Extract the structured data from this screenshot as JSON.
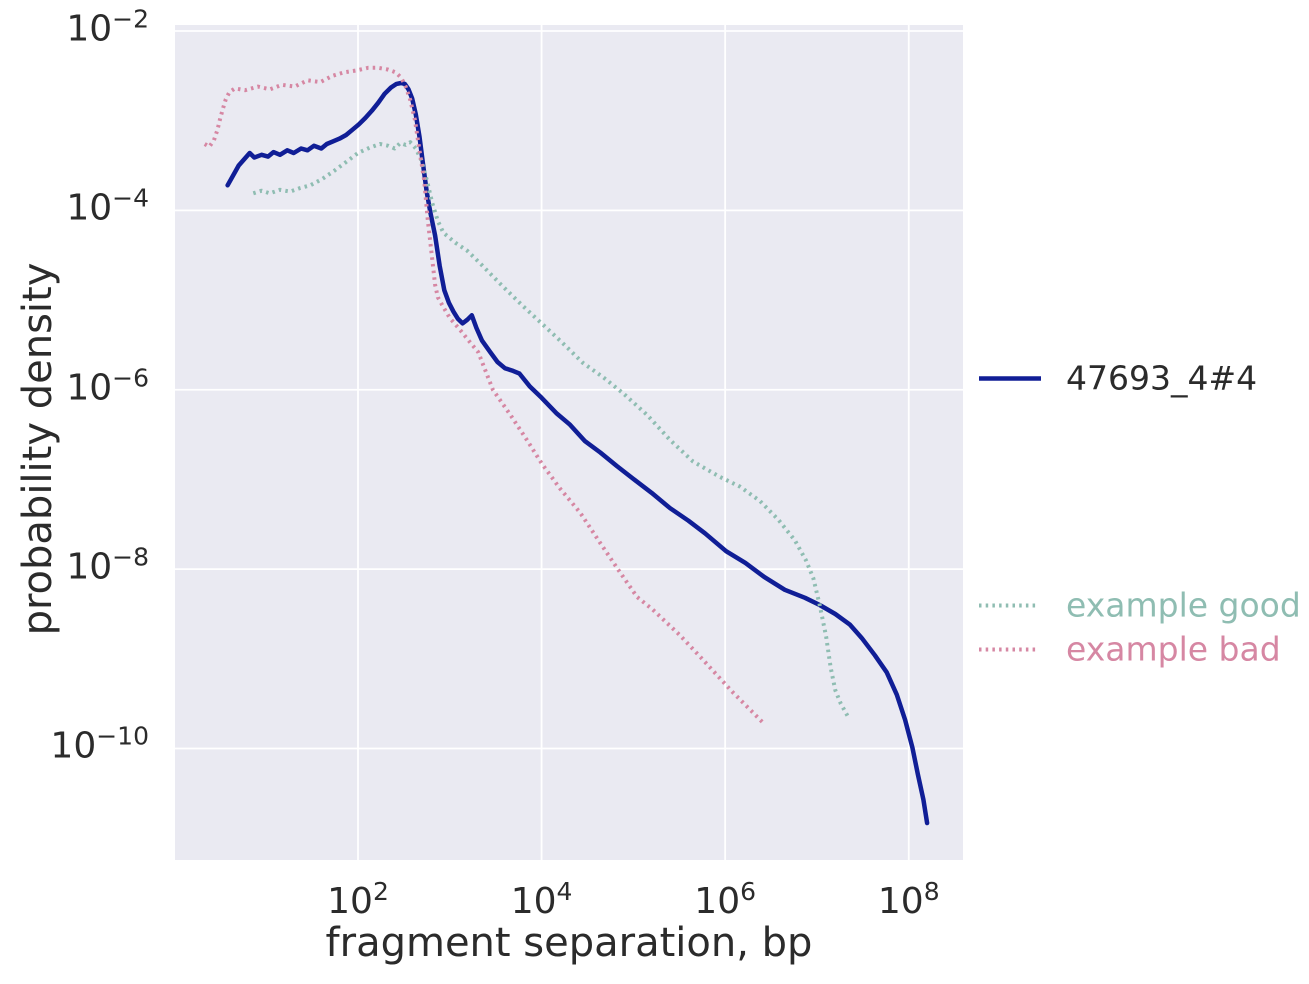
{
  "chart_data": {
    "type": "line",
    "title": "",
    "xlabel": "fragment separation, bp",
    "ylabel": "probability density",
    "x_scale": "log",
    "y_scale": "log",
    "background_color": "#eaeaf2",
    "grid_color": "#ffffff",
    "text_color": "#2b2b2b",
    "axes": {
      "x_log_min": 0.0065,
      "x_log_max": 8.591,
      "y_log_min": -11.243,
      "y_log_max": -1.933
    },
    "x_gridlines_log10": [
      2,
      4,
      6,
      8
    ],
    "y_gridlines_log10": [
      -2,
      -4,
      -6,
      -8,
      -10
    ],
    "x_ticks": [
      {
        "base": "10",
        "exp": "2"
      },
      {
        "base": "10",
        "exp": "4"
      },
      {
        "base": "10",
        "exp": "6"
      },
      {
        "base": "10",
        "exp": "8"
      }
    ],
    "y_ticks": [
      {
        "base": "10",
        "exp": "−2"
      },
      {
        "base": "10",
        "exp": "−4"
      },
      {
        "base": "10",
        "exp": "−6"
      },
      {
        "base": "10",
        "exp": "−8"
      },
      {
        "base": "10",
        "exp": "−10"
      }
    ],
    "series": [
      {
        "name": "47693_4#4",
        "color": "#101e96",
        "style": "solid",
        "width": 4.5,
        "points_log10": [
          [
            0.58,
            -3.72
          ],
          [
            0.7,
            -3.5
          ],
          [
            0.82,
            -3.36
          ],
          [
            0.87,
            -3.41
          ],
          [
            0.95,
            -3.38
          ],
          [
            1.02,
            -3.4
          ],
          [
            1.08,
            -3.35
          ],
          [
            1.15,
            -3.38
          ],
          [
            1.23,
            -3.33
          ],
          [
            1.3,
            -3.36
          ],
          [
            1.38,
            -3.31
          ],
          [
            1.45,
            -3.33
          ],
          [
            1.52,
            -3.28
          ],
          [
            1.6,
            -3.31
          ],
          [
            1.66,
            -3.26
          ],
          [
            1.73,
            -3.23
          ],
          [
            1.8,
            -3.2
          ],
          [
            1.87,
            -3.16
          ],
          [
            1.94,
            -3.1
          ],
          [
            2.01,
            -3.04
          ],
          [
            2.08,
            -2.97
          ],
          [
            2.15,
            -2.89
          ],
          [
            2.22,
            -2.8
          ],
          [
            2.29,
            -2.7
          ],
          [
            2.36,
            -2.63
          ],
          [
            2.42,
            -2.59
          ],
          [
            2.47,
            -2.58
          ],
          [
            2.51,
            -2.59
          ],
          [
            2.55,
            -2.65
          ],
          [
            2.59,
            -2.75
          ],
          [
            2.63,
            -2.93
          ],
          [
            2.67,
            -3.18
          ],
          [
            2.71,
            -3.5
          ],
          [
            2.75,
            -3.8
          ],
          [
            2.79,
            -4.03
          ],
          [
            2.84,
            -4.28
          ],
          [
            2.89,
            -4.62
          ],
          [
            2.94,
            -4.89
          ],
          [
            2.99,
            -5.03
          ],
          [
            3.04,
            -5.13
          ],
          [
            3.09,
            -5.21
          ],
          [
            3.14,
            -5.26
          ],
          [
            3.19,
            -5.22
          ],
          [
            3.24,
            -5.17
          ],
          [
            3.29,
            -5.31
          ],
          [
            3.35,
            -5.45
          ],
          [
            3.44,
            -5.58
          ],
          [
            3.52,
            -5.69
          ],
          [
            3.6,
            -5.76
          ],
          [
            3.69,
            -5.79
          ],
          [
            3.76,
            -5.82
          ],
          [
            3.87,
            -5.96
          ],
          [
            4.0,
            -6.09
          ],
          [
            4.16,
            -6.26
          ],
          [
            4.31,
            -6.39
          ],
          [
            4.47,
            -6.57
          ],
          [
            4.64,
            -6.7
          ],
          [
            4.82,
            -6.85
          ],
          [
            5.02,
            -7.01
          ],
          [
            5.2,
            -7.15
          ],
          [
            5.4,
            -7.32
          ],
          [
            5.6,
            -7.46
          ],
          [
            5.78,
            -7.6
          ],
          [
            6.01,
            -7.8
          ],
          [
            6.22,
            -7.93
          ],
          [
            6.43,
            -8.09
          ],
          [
            6.65,
            -8.23
          ],
          [
            6.87,
            -8.32
          ],
          [
            7.03,
            -8.4
          ],
          [
            7.2,
            -8.5
          ],
          [
            7.36,
            -8.62
          ],
          [
            7.49,
            -8.77
          ],
          [
            7.63,
            -8.96
          ],
          [
            7.76,
            -9.15
          ],
          [
            7.87,
            -9.4
          ],
          [
            7.96,
            -9.68
          ],
          [
            8.04,
            -9.99
          ],
          [
            8.1,
            -10.29
          ],
          [
            8.16,
            -10.57
          ],
          [
            8.2,
            -10.83
          ]
        ]
      },
      {
        "name": "example good",
        "color": "#8fbdb2",
        "style": "dotted",
        "width": 4,
        "points_log10": [
          [
            0.86,
            -3.81
          ],
          [
            0.95,
            -3.78
          ],
          [
            1.04,
            -3.81
          ],
          [
            1.15,
            -3.77
          ],
          [
            1.26,
            -3.79
          ],
          [
            1.37,
            -3.75
          ],
          [
            1.48,
            -3.72
          ],
          [
            1.61,
            -3.65
          ],
          [
            1.74,
            -3.56
          ],
          [
            1.87,
            -3.46
          ],
          [
            2.0,
            -3.36
          ],
          [
            2.13,
            -3.3
          ],
          [
            2.24,
            -3.26
          ],
          [
            2.33,
            -3.28
          ],
          [
            2.4,
            -3.31
          ],
          [
            2.46,
            -3.25
          ],
          [
            2.52,
            -3.27
          ],
          [
            2.57,
            -3.24
          ],
          [
            2.63,
            -3.31
          ],
          [
            2.69,
            -3.44
          ],
          [
            2.75,
            -3.66
          ],
          [
            2.81,
            -3.92
          ],
          [
            2.87,
            -4.12
          ],
          [
            2.93,
            -4.25
          ],
          [
            3.06,
            -4.36
          ],
          [
            3.19,
            -4.45
          ],
          [
            3.33,
            -4.59
          ],
          [
            3.55,
            -4.82
          ],
          [
            3.78,
            -5.05
          ],
          [
            4.0,
            -5.26
          ],
          [
            4.22,
            -5.47
          ],
          [
            4.45,
            -5.7
          ],
          [
            4.67,
            -5.86
          ],
          [
            4.89,
            -6.04
          ],
          [
            5.15,
            -6.28
          ],
          [
            5.4,
            -6.56
          ],
          [
            5.65,
            -6.8
          ],
          [
            5.94,
            -6.97
          ],
          [
            6.16,
            -7.08
          ],
          [
            6.38,
            -7.24
          ],
          [
            6.58,
            -7.45
          ],
          [
            6.76,
            -7.68
          ],
          [
            6.88,
            -7.9
          ],
          [
            6.96,
            -8.1
          ],
          [
            7.03,
            -8.4
          ],
          [
            7.1,
            -8.75
          ],
          [
            7.15,
            -9.1
          ],
          [
            7.2,
            -9.35
          ],
          [
            7.26,
            -9.5
          ],
          [
            7.34,
            -9.65
          ]
        ]
      },
      {
        "name": "example bad",
        "color": "#d687a3",
        "style": "dotted",
        "width": 4,
        "points_log10": [
          [
            0.33,
            -3.26
          ],
          [
            0.38,
            -3.29
          ],
          [
            0.43,
            -3.22
          ],
          [
            0.47,
            -3.1
          ],
          [
            0.5,
            -2.97
          ],
          [
            0.53,
            -2.86
          ],
          [
            0.56,
            -2.76
          ],
          [
            0.6,
            -2.68
          ],
          [
            0.66,
            -2.64
          ],
          [
            0.77,
            -2.66
          ],
          [
            0.91,
            -2.62
          ],
          [
            1.04,
            -2.65
          ],
          [
            1.17,
            -2.6
          ],
          [
            1.31,
            -2.62
          ],
          [
            1.45,
            -2.55
          ],
          [
            1.59,
            -2.57
          ],
          [
            1.72,
            -2.5
          ],
          [
            1.85,
            -2.46
          ],
          [
            1.98,
            -2.44
          ],
          [
            2.11,
            -2.41
          ],
          [
            2.22,
            -2.41
          ],
          [
            2.33,
            -2.43
          ],
          [
            2.41,
            -2.46
          ],
          [
            2.47,
            -2.52
          ],
          [
            2.52,
            -2.62
          ],
          [
            2.57,
            -2.77
          ],
          [
            2.62,
            -2.99
          ],
          [
            2.67,
            -3.33
          ],
          [
            2.72,
            -3.66
          ],
          [
            2.76,
            -4.11
          ],
          [
            2.81,
            -4.55
          ],
          [
            2.84,
            -4.83
          ],
          [
            2.87,
            -4.97
          ],
          [
            2.93,
            -5.08
          ],
          [
            3.0,
            -5.2
          ],
          [
            3.11,
            -5.33
          ],
          [
            3.22,
            -5.47
          ],
          [
            3.31,
            -5.58
          ],
          [
            3.47,
            -6.0
          ],
          [
            3.66,
            -6.28
          ],
          [
            3.84,
            -6.56
          ],
          [
            4.0,
            -6.82
          ],
          [
            4.2,
            -7.1
          ],
          [
            4.42,
            -7.37
          ],
          [
            4.64,
            -7.71
          ],
          [
            4.83,
            -8.0
          ],
          [
            5.04,
            -8.31
          ],
          [
            5.21,
            -8.45
          ],
          [
            5.5,
            -8.73
          ],
          [
            5.73,
            -8.98
          ],
          [
            6.08,
            -9.37
          ],
          [
            6.43,
            -9.73
          ]
        ]
      }
    ],
    "legend_main": {
      "label": "47693_4#4"
    },
    "legend_examples": [
      {
        "label": "example good"
      },
      {
        "label": "example bad"
      }
    ]
  }
}
